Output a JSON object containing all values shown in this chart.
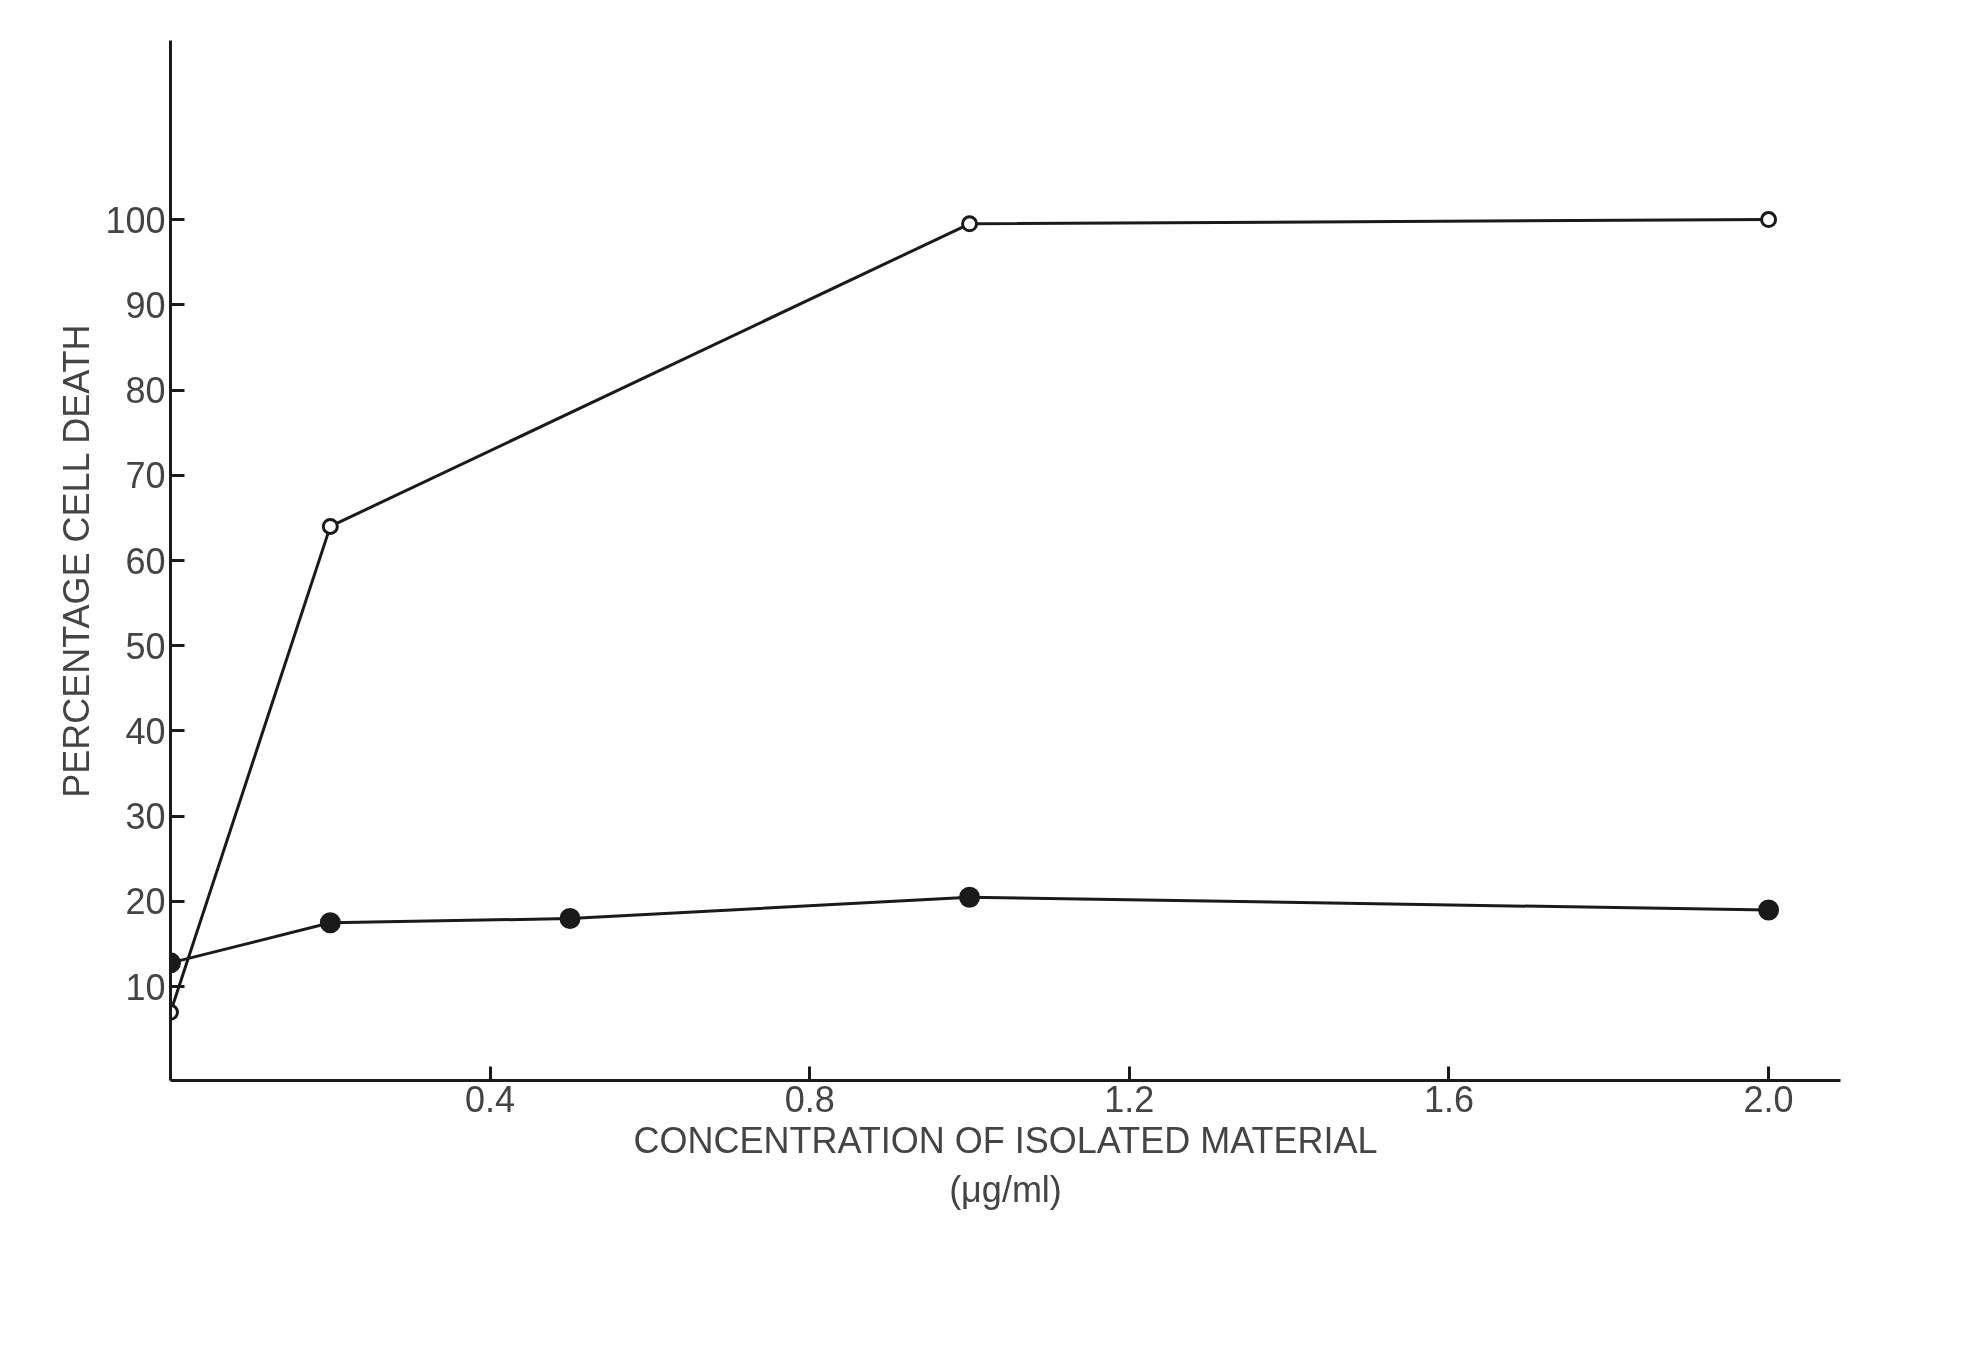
{
  "chart_data": {
    "type": "line",
    "xlabel": "CONCENTRATION OF ISOLATED MATERIAL\n(μg/ml)",
    "ylabel": "PERCENTAGE CELL DEATH",
    "xlim": [
      0,
      2.09
    ],
    "ylim": [
      -1,
      121
    ],
    "xticks": [
      {
        "value": 0.4,
        "label": "0.4"
      },
      {
        "value": 0.8,
        "label": "0.8"
      },
      {
        "value": 1.2,
        "label": "1.2"
      },
      {
        "value": 1.6,
        "label": "1.6"
      },
      {
        "value": 2.0,
        "label": "2.0"
      }
    ],
    "yticks": [
      10,
      20,
      30,
      40,
      50,
      60,
      70,
      80,
      90,
      100
    ],
    "marker": "circle",
    "series": [
      {
        "color": "#1a1a1a",
        "x": [
          0,
          0.2,
          1.0,
          2.0
        ],
        "values": [
          7,
          64,
          99.5,
          100
        ]
      },
      {
        "color": "#1a1a1a",
        "x": [
          0,
          0.2,
          0.5,
          1.0,
          2.0
        ],
        "values": [
          12.8,
          17.5,
          18,
          20.5,
          19
        ]
      }
    ]
  }
}
